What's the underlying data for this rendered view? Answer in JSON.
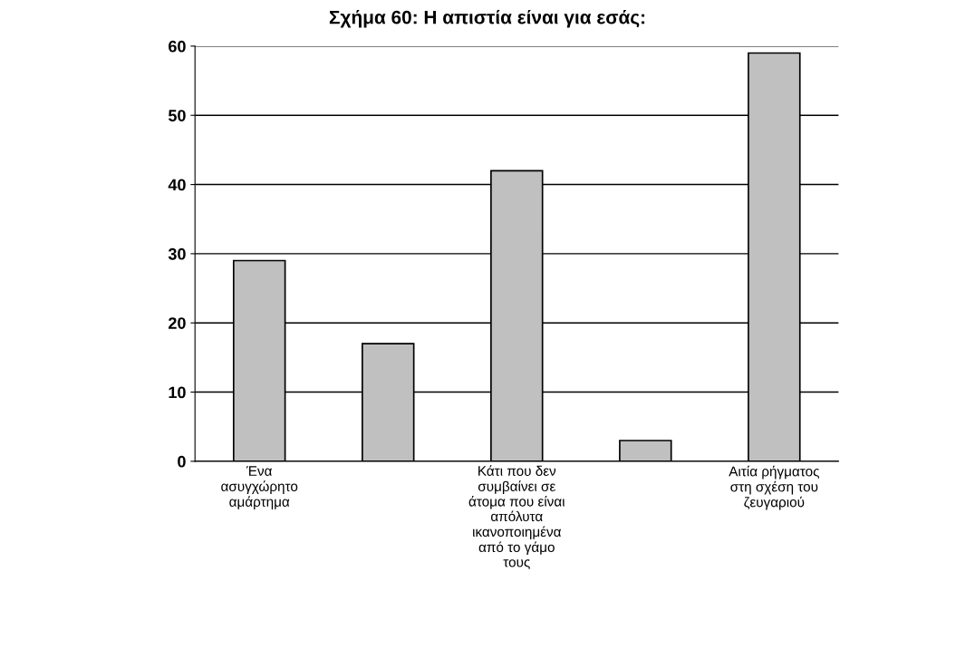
{
  "chart_data": {
    "type": "bar",
    "title": "Σχήμα 60: Η απιστία είναι για εσάς:",
    "categories": [
      "Ένα\nασυγχώρητο\nαμάρτημα",
      null,
      "Κάτι που δεν\nσυμβαίνει σε\nάτομα που είναι\nαπόλυτα\nικανοποιημένα\nαπό το γάμο\nτους",
      null,
      "Αιτία ρήγματος\nστη σχέση του\nζευγαριού"
    ],
    "values": [
      29,
      17,
      42,
      3,
      59
    ],
    "color": "#c0c0c0",
    "ylim": [
      0,
      60
    ],
    "yticks": [
      0,
      10,
      20,
      30,
      40,
      50,
      60
    ],
    "grid": "y"
  }
}
